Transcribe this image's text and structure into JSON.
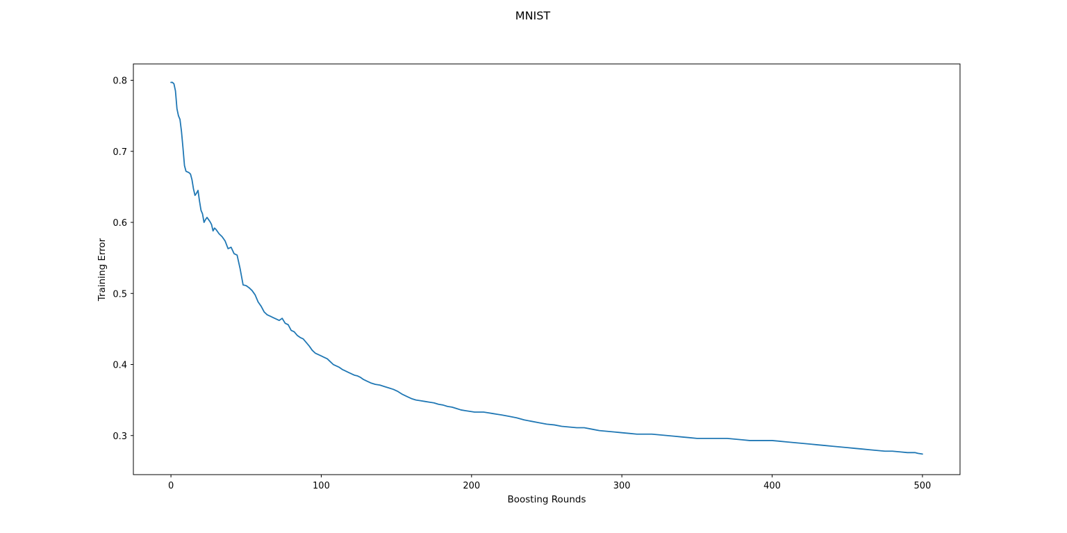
{
  "chart_data": {
    "type": "line",
    "title": "MNIST",
    "xlabel": "Boosting Rounds",
    "ylabel": "Training Error",
    "xlim": [
      -25,
      525
    ],
    "ylim": [
      0.245,
      0.823
    ],
    "xticks": [
      0,
      100,
      200,
      300,
      400,
      500
    ],
    "yticks": [
      0.3,
      0.4,
      0.5,
      0.6,
      0.7,
      0.8
    ],
    "xtick_labels": [
      "0",
      "100",
      "200",
      "300",
      "400",
      "500"
    ],
    "ytick_labels": [
      "0.3",
      "0.4",
      "0.5",
      "0.6",
      "0.7",
      "0.8"
    ],
    "grid": false,
    "line_color": "#1f77b4",
    "series": [
      {
        "x": [
          0,
          1,
          2,
          3,
          4,
          5,
          6,
          7,
          8,
          9,
          10,
          11,
          12,
          13,
          14,
          15,
          16,
          17,
          18,
          19,
          20,
          21,
          22,
          23,
          24,
          25,
          26,
          27,
          28,
          29,
          30,
          32,
          34,
          36,
          38,
          40,
          42,
          44,
          46,
          48,
          50,
          52,
          54,
          56,
          58,
          60,
          62,
          64,
          66,
          68,
          70,
          72,
          74,
          76,
          78,
          80,
          82,
          84,
          86,
          88,
          90,
          92,
          94,
          96,
          98,
          100,
          102,
          104,
          106,
          108,
          110,
          112,
          114,
          116,
          118,
          120,
          122,
          124,
          126,
          128,
          130,
          133,
          136,
          139,
          142,
          145,
          148,
          151,
          154,
          157,
          160,
          163,
          166,
          169,
          172,
          175,
          178,
          181,
          184,
          187,
          190,
          193,
          196,
          199,
          202,
          205,
          208,
          211,
          214,
          217,
          220,
          225,
          230,
          235,
          240,
          245,
          250,
          255,
          260,
          265,
          270,
          275,
          280,
          285,
          290,
          295,
          300,
          305,
          310,
          315,
          320,
          325,
          330,
          335,
          340,
          345,
          350,
          355,
          360,
          365,
          370,
          375,
          380,
          385,
          390,
          395,
          400,
          405,
          410,
          415,
          420,
          425,
          430,
          435,
          440,
          445,
          450,
          455,
          460,
          465,
          470,
          475,
          480,
          485,
          490,
          495,
          497,
          500
        ],
        "y": [
          0.797,
          0.797,
          0.795,
          0.785,
          0.76,
          0.75,
          0.745,
          0.728,
          0.705,
          0.68,
          0.672,
          0.671,
          0.67,
          0.668,
          0.66,
          0.647,
          0.638,
          0.641,
          0.645,
          0.63,
          0.617,
          0.612,
          0.6,
          0.604,
          0.607,
          0.604,
          0.601,
          0.597,
          0.588,
          0.592,
          0.59,
          0.584,
          0.58,
          0.574,
          0.563,
          0.565,
          0.556,
          0.554,
          0.535,
          0.512,
          0.511,
          0.508,
          0.504,
          0.498,
          0.488,
          0.482,
          0.474,
          0.47,
          0.468,
          0.466,
          0.464,
          0.462,
          0.465,
          0.458,
          0.456,
          0.448,
          0.446,
          0.441,
          0.438,
          0.436,
          0.431,
          0.426,
          0.42,
          0.416,
          0.414,
          0.412,
          0.41,
          0.408,
          0.404,
          0.4,
          0.398,
          0.396,
          0.393,
          0.391,
          0.389,
          0.387,
          0.385,
          0.384,
          0.382,
          0.379,
          0.377,
          0.374,
          0.372,
          0.371,
          0.369,
          0.367,
          0.365,
          0.362,
          0.358,
          0.355,
          0.352,
          0.35,
          0.349,
          0.348,
          0.347,
          0.346,
          0.344,
          0.343,
          0.341,
          0.34,
          0.338,
          0.336,
          0.335,
          0.334,
          0.333,
          0.333,
          0.333,
          0.332,
          0.331,
          0.33,
          0.329,
          0.327,
          0.325,
          0.322,
          0.32,
          0.318,
          0.316,
          0.315,
          0.313,
          0.312,
          0.311,
          0.311,
          0.309,
          0.307,
          0.306,
          0.305,
          0.304,
          0.303,
          0.302,
          0.302,
          0.302,
          0.301,
          0.3,
          0.299,
          0.298,
          0.297,
          0.296,
          0.296,
          0.296,
          0.296,
          0.296,
          0.295,
          0.294,
          0.293,
          0.293,
          0.293,
          0.293,
          0.292,
          0.291,
          0.29,
          0.289,
          0.288,
          0.287,
          0.286,
          0.285,
          0.284,
          0.283,
          0.282,
          0.281,
          0.28,
          0.279,
          0.278,
          0.278,
          0.277,
          0.276,
          0.276,
          0.275,
          0.274
        ]
      }
    ]
  }
}
